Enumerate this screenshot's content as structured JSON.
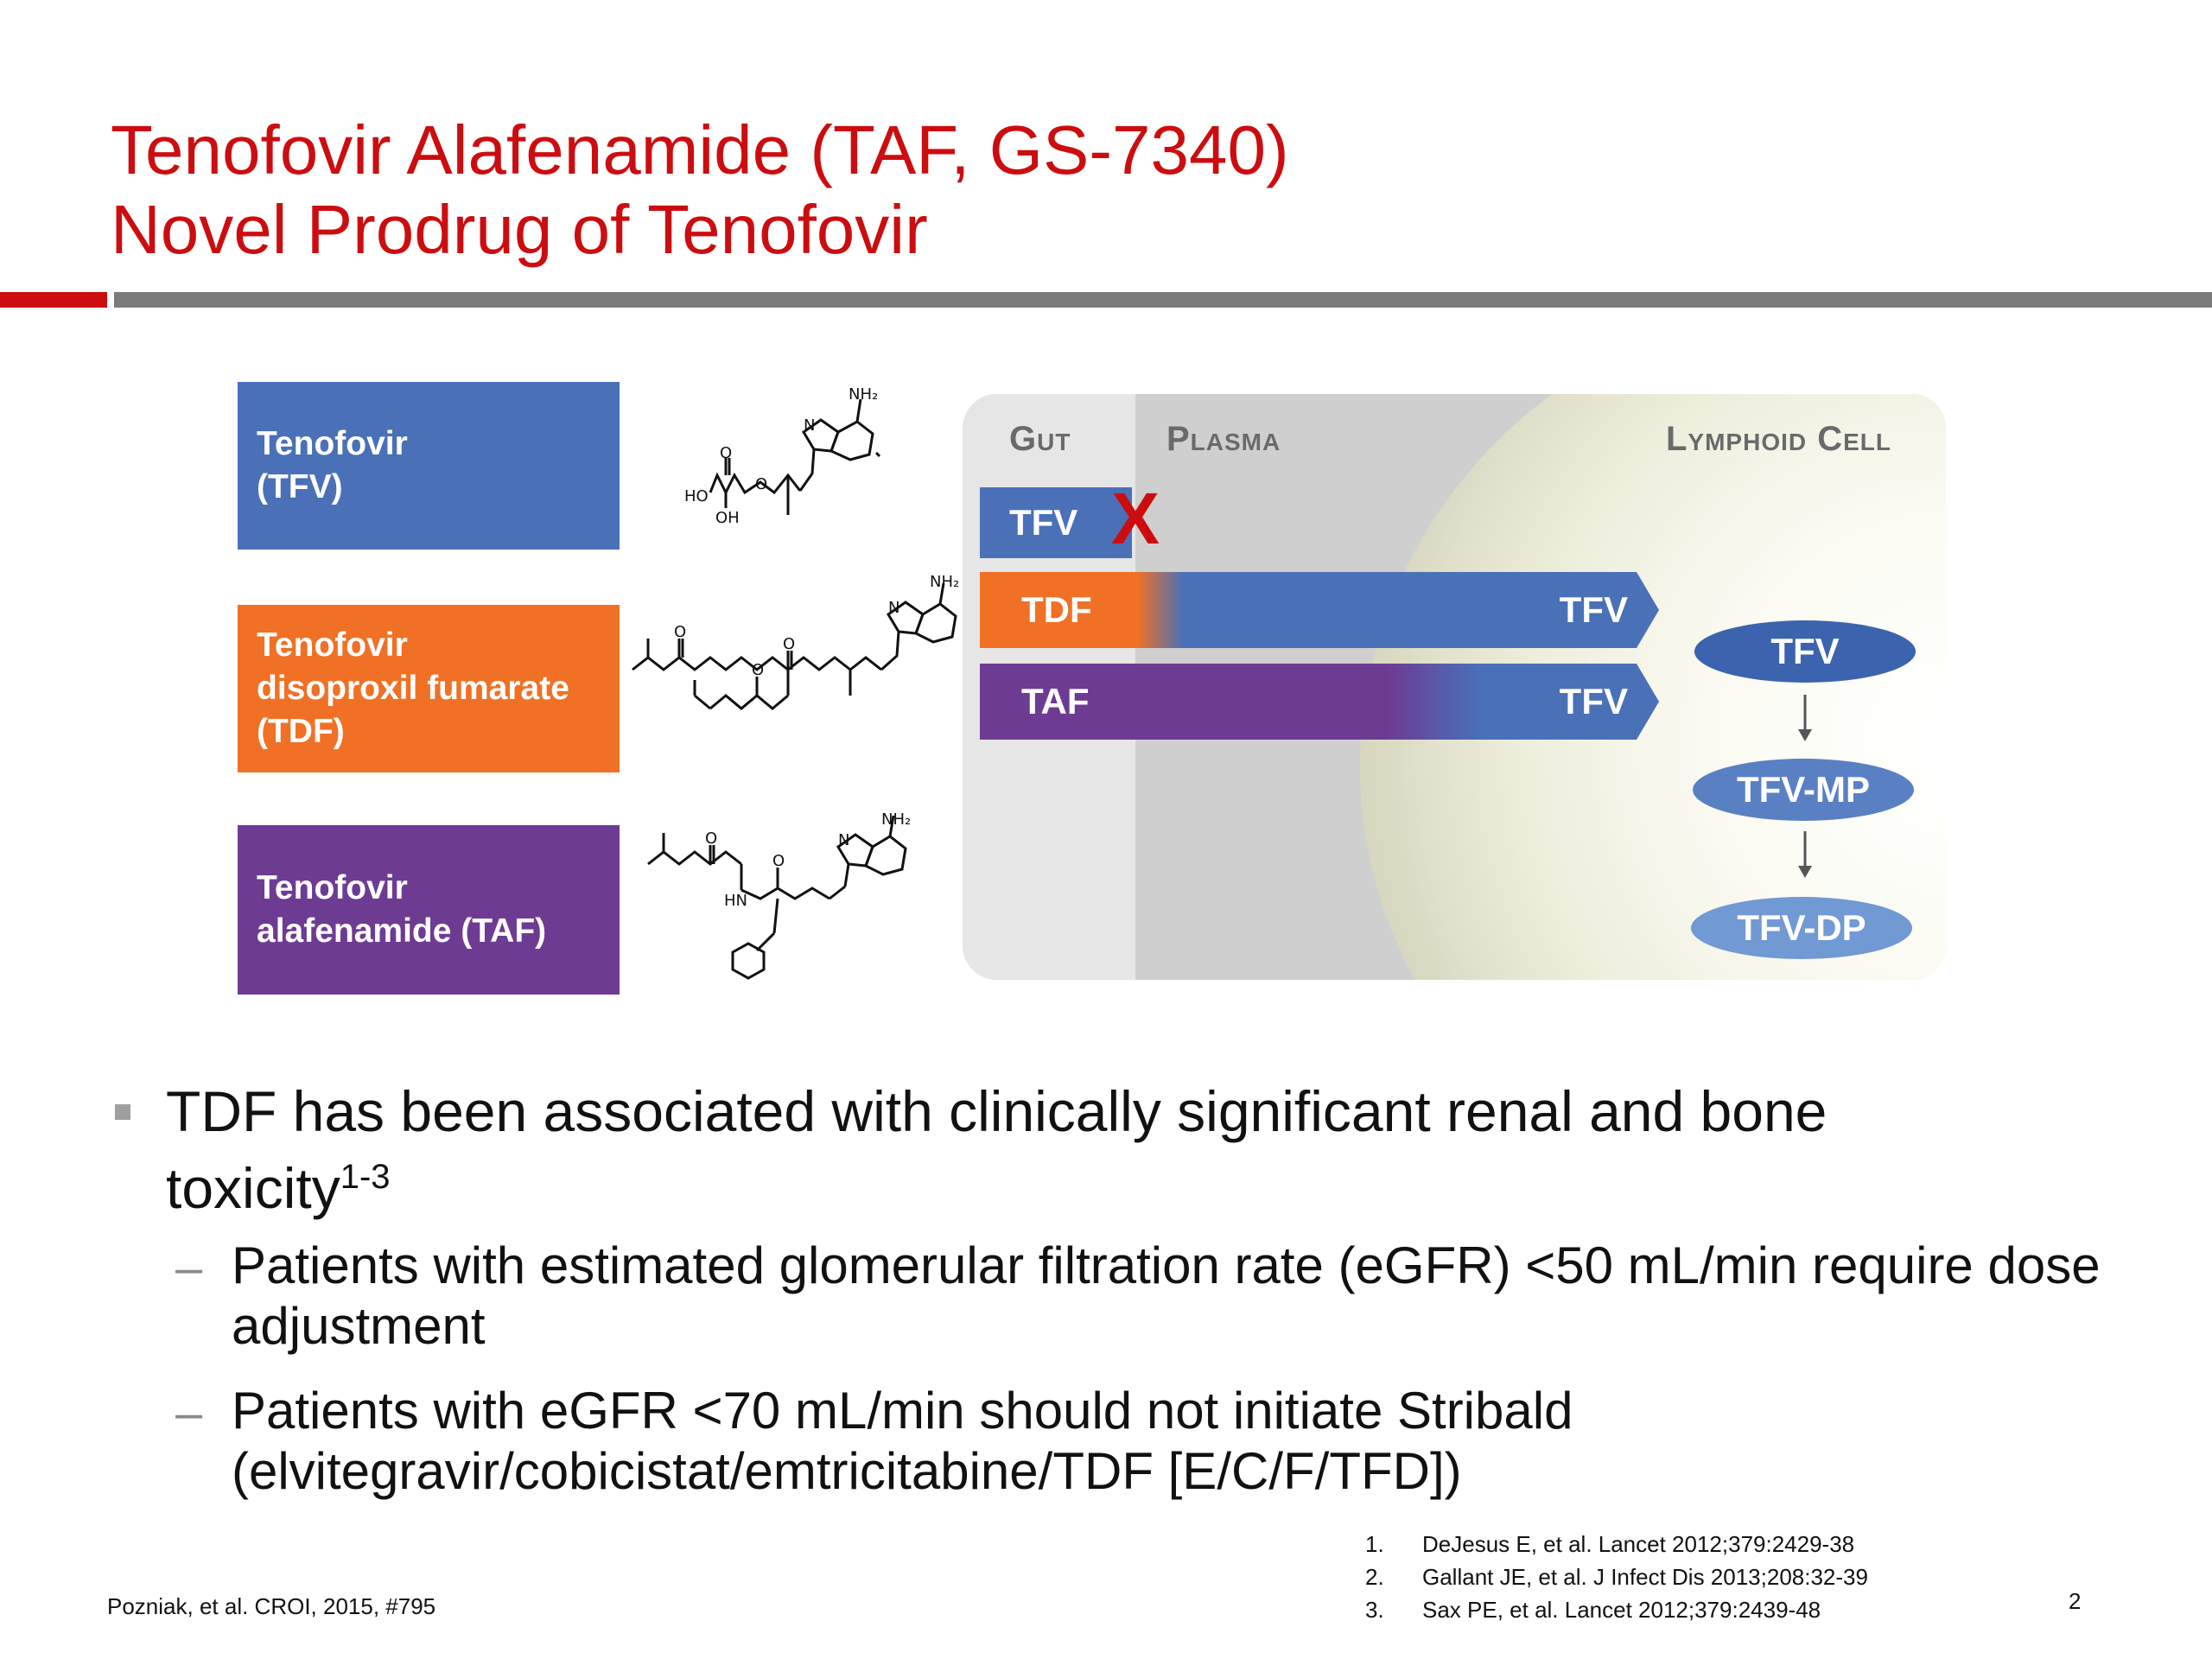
{
  "title": {
    "line1": "Tenofovir Alafenamide (TAF, GS-7340)",
    "line2": "Novel Prodrug of Tenofovir"
  },
  "colors": {
    "title_red": "#cc0d10",
    "tfv_blue": "#4a70b8",
    "tdf_orange": "#f07125",
    "taf_purple": "#6e3b93"
  },
  "drugs": [
    {
      "line1": "Tenofovir",
      "line2": "(TFV)"
    },
    {
      "line1": "Tenofovir",
      "line2": "disoproxil fumarate",
      "line3": "(TDF)"
    },
    {
      "line1": "Tenofovir",
      "line2": "alafenamide (TAF)"
    }
  ],
  "structures": {
    "nh2": "NH₂",
    "n": "N",
    "o": "O",
    "ho": "HO",
    "oh": "OH",
    "hn": "HN"
  },
  "pathway": {
    "regions": {
      "gut": "Gut",
      "plasma": "Plasma",
      "cell": "Lymphoid Cell"
    },
    "bars": {
      "tfv": "TFV",
      "blocked": "X",
      "tdf": "TDF",
      "tdf_result": "TFV",
      "taf": "TAF",
      "taf_result": "TFV"
    },
    "metabolites": [
      "TFV",
      "TFV-MP",
      "TFV-DP"
    ]
  },
  "bullets": {
    "main": "TDF has been associated with clinically significant renal and bone toxicity",
    "main_sup": "1-3",
    "subs": [
      "Patients with estimated glomerular filtration rate (eGFR) <50 mL/min require dose adjustment",
      "Patients with eGFR <70 mL/min should not initiate Stribald (elvitegravir/cobicistat/emtricitabine/TDF [E/C/F/TFD])"
    ]
  },
  "references": [
    {
      "num": "1.",
      "text": "DeJesus E, et al. Lancet 2012;379:2429-38"
    },
    {
      "num": "2.",
      "text": "Gallant JE, et al. J Infect Dis 2013;208:32-39"
    },
    {
      "num": "3.",
      "text": "Sax PE, et al. Lancet 2012;379:2439-48"
    }
  ],
  "footer": {
    "citation": "Pozniak, et al. CROI, 2015, #795",
    "page_number": "2"
  }
}
